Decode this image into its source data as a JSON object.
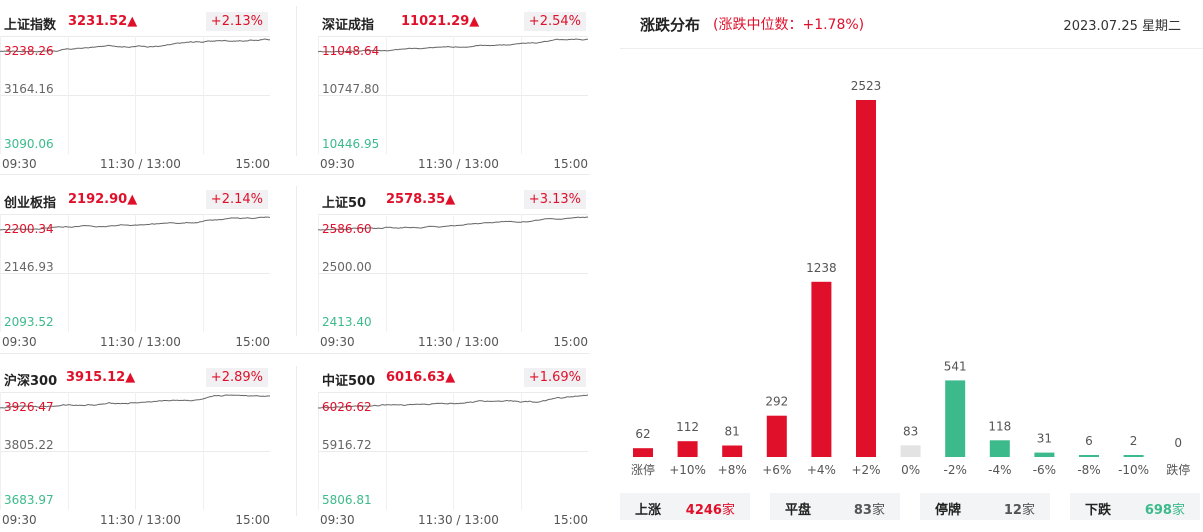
{
  "indices": [
    {
      "name": "上证指数",
      "value": "3231.52▲",
      "change": "+2.13%",
      "high": "3238.26",
      "mid": "3164.16",
      "low": "3090.06",
      "x_labels": [
        "09:30",
        "11:30 / 13:00",
        "15:00"
      ]
    },
    {
      "name": "深证成指",
      "value": "11021.29▲",
      "change": "+2.54%",
      "high": "11048.64",
      "mid": "10747.80",
      "low": "10446.95",
      "x_labels": [
        "09:30",
        "11:30 / 13:00",
        "15:00"
      ]
    },
    {
      "name": "创业板指",
      "value": "2192.90▲",
      "change": "+2.14%",
      "high": "2200.34",
      "mid": "2146.93",
      "low": "2093.52",
      "x_labels": [
        "09:30",
        "11:30 / 13:00",
        "15:00"
      ]
    },
    {
      "name": "上证50",
      "value": "2578.35▲",
      "change": "+3.13%",
      "high": "2586.60",
      "mid": "2500.00",
      "low": "2413.40",
      "x_labels": [
        "09:30",
        "11:30 / 13:00",
        "15:00"
      ]
    },
    {
      "name": "沪深300",
      "value": "3915.12▲",
      "change": "+2.89%",
      "high": "3926.47",
      "mid": "3805.22",
      "low": "3683.97",
      "x_labels": [
        "09:30",
        "11:30 / 13:00",
        "15:00"
      ]
    },
    {
      "name": "中证500",
      "value": "6016.63▲",
      "change": "+1.69%",
      "high": "6026.62",
      "mid": "5916.72",
      "low": "5806.81",
      "x_labels": [
        "09:30",
        "11:30 / 13:00",
        "15:00"
      ]
    }
  ],
  "distribution": {
    "title": "涨跌分布",
    "subtitle": "(涨跌中位数：+1.78%)",
    "date": "2023.07.25 星期二",
    "summary": [
      {
        "label": "上涨",
        "value": "4246",
        "unit": "家",
        "color": "#e0102a"
      },
      {
        "label": "平盘",
        "value": "83",
        "unit": "家",
        "color": "#555555"
      },
      {
        "label": "停牌",
        "value": "12",
        "unit": "家",
        "color": "#555555"
      },
      {
        "label": "下跌",
        "value": "698",
        "unit": "家",
        "color": "#3cba8c"
      }
    ]
  },
  "colors": {
    "up": "#e0102a",
    "down": "#3cba8c",
    "flat": "#e3e3e3"
  },
  "chart_data": {
    "type": "bar",
    "categories": [
      "涨停",
      "+10%",
      "+8%",
      "+6%",
      "+4%",
      "+2%",
      "0%",
      "-2%",
      "-4%",
      "-6%",
      "-8%",
      "-10%",
      "跌停"
    ],
    "values": [
      62,
      112,
      81,
      292,
      1238,
      2523,
      83,
      541,
      118,
      31,
      6,
      2,
      0
    ],
    "kinds": [
      "up",
      "up",
      "up",
      "up",
      "up",
      "up",
      "flat",
      "down",
      "down",
      "down",
      "down",
      "down",
      "down"
    ],
    "title": "",
    "xlabel": "",
    "ylabel": "",
    "ylim": [
      0,
      2523
    ]
  }
}
